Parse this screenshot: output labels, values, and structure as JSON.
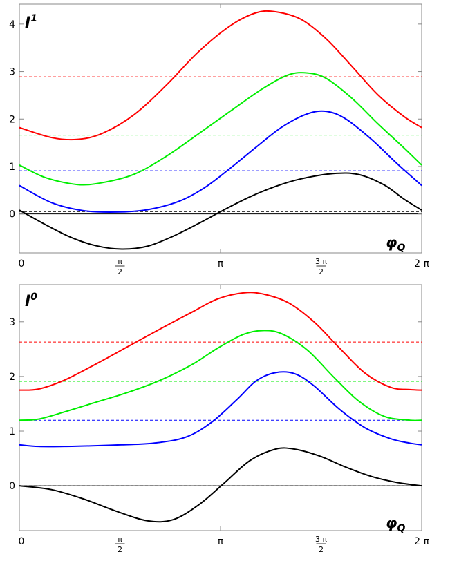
{
  "chart_data": [
    {
      "type": "line",
      "ylabel": "I",
      "ylabel_superscript": "1",
      "xlabel": "φ",
      "xlabel_subscript": "Q",
      "xlim": [
        0,
        6.2832
      ],
      "ylim": [
        -0.82,
        4.42
      ],
      "yticks": [
        "0",
        "1",
        "2",
        "3",
        "4"
      ],
      "ytick_values": [
        0,
        1,
        2,
        3,
        4
      ],
      "xticks": [
        {
          "value": 0,
          "label": "0"
        },
        {
          "value": 1.5708,
          "num": "π",
          "den": "2"
        },
        {
          "value": 3.1416,
          "label": "π"
        },
        {
          "value": 4.7124,
          "num": "3 π",
          "den": "2"
        },
        {
          "value": 6.2832,
          "label": "2 π"
        }
      ],
      "zero_line": true,
      "series": [
        {
          "color": "#ff0000",
          "dashed_level": 2.89,
          "x": [
            0,
            0.5,
            0.9,
            1.3,
            1.8,
            2.3,
            2.8,
            3.3,
            3.7,
            4.0,
            4.4,
            4.8,
            5.2,
            5.6,
            6.0,
            6.2832
          ],
          "y": [
            1.82,
            1.61,
            1.57,
            1.7,
            2.1,
            2.72,
            3.42,
            3.97,
            4.24,
            4.26,
            4.1,
            3.68,
            3.1,
            2.51,
            2.06,
            1.82
          ]
        },
        {
          "color": "#00ee00",
          "dashed_level": 1.66,
          "x": [
            0,
            0.4,
            0.9,
            1.3,
            1.8,
            2.3,
            2.8,
            3.3,
            3.8,
            4.2,
            4.5,
            4.8,
            5.2,
            5.6,
            6.0,
            6.2832
          ],
          "y": [
            1.03,
            0.77,
            0.62,
            0.66,
            0.84,
            1.22,
            1.69,
            2.17,
            2.64,
            2.93,
            2.97,
            2.85,
            2.43,
            1.9,
            1.4,
            1.03
          ]
        },
        {
          "color": "#0000ff",
          "dashed_level": 0.91,
          "x": [
            0,
            0.5,
            1.0,
            1.5,
            2.0,
            2.5,
            2.9,
            3.3,
            3.7,
            4.1,
            4.5,
            4.8,
            5.1,
            5.5,
            5.9,
            6.2832
          ],
          "y": [
            0.6,
            0.24,
            0.07,
            0.04,
            0.09,
            0.27,
            0.56,
            0.97,
            1.41,
            1.83,
            2.11,
            2.16,
            2.0,
            1.57,
            1.06,
            0.6
          ]
        },
        {
          "color": "#000000",
          "dashed_level": 0.05,
          "x": [
            0,
            0.4,
            0.8,
            1.2,
            1.6,
            2.0,
            2.4,
            2.8,
            3.2,
            3.6,
            4.0,
            4.4,
            4.9,
            5.3,
            5.7,
            6.0,
            6.2832
          ],
          "y": [
            0.08,
            -0.22,
            -0.49,
            -0.67,
            -0.74,
            -0.68,
            -0.47,
            -0.2,
            0.09,
            0.36,
            0.58,
            0.74,
            0.85,
            0.83,
            0.61,
            0.32,
            0.08
          ]
        }
      ]
    },
    {
      "type": "line",
      "ylabel": "I",
      "ylabel_superscript": "0",
      "xlabel": "φ",
      "xlabel_subscript": "Q",
      "xlim": [
        0,
        6.2832
      ],
      "ylim": [
        -0.82,
        3.68
      ],
      "yticks": [
        "0",
        "1",
        "2",
        "3"
      ],
      "ytick_values": [
        0,
        1,
        2,
        3
      ],
      "xticks": [
        {
          "value": 0,
          "label": "0"
        },
        {
          "value": 1.5708,
          "num": "π",
          "den": "2"
        },
        {
          "value": 3.1416,
          "label": "π"
        },
        {
          "value": 4.7124,
          "num": "3 π",
          "den": "2"
        },
        {
          "value": 6.2832,
          "label": "2 π"
        }
      ],
      "zero_line": true,
      "series": [
        {
          "color": "#ff0000",
          "dashed_level": 2.63,
          "x": [
            0,
            0.3,
            0.7,
            1.2,
            1.7,
            2.2,
            2.7,
            3.1,
            3.5,
            3.8,
            4.2,
            4.6,
            5.0,
            5.4,
            5.8,
            6.1,
            6.2832
          ],
          "y": [
            1.75,
            1.77,
            1.93,
            2.23,
            2.55,
            2.87,
            3.18,
            3.42,
            3.53,
            3.51,
            3.35,
            3.0,
            2.52,
            2.06,
            1.8,
            1.76,
            1.75
          ]
        },
        {
          "color": "#00ee00",
          "dashed_level": 1.91,
          "x": [
            0,
            0.3,
            0.7,
            1.2,
            1.7,
            2.2,
            2.7,
            3.1,
            3.5,
            3.8,
            4.1,
            4.5,
            4.9,
            5.3,
            5.7,
            6.1,
            6.2832
          ],
          "y": [
            1.2,
            1.22,
            1.35,
            1.53,
            1.71,
            1.93,
            2.22,
            2.52,
            2.77,
            2.84,
            2.78,
            2.48,
            2.0,
            1.55,
            1.27,
            1.2,
            1.2
          ]
        },
        {
          "color": "#0000ff",
          "dashed_level": 1.2,
          "x": [
            0,
            0.3,
            0.7,
            1.1,
            1.6,
            2.1,
            2.6,
            3.0,
            3.4,
            3.7,
            4.0,
            4.3,
            4.6,
            5.0,
            5.4,
            5.8,
            6.1,
            6.2832
          ],
          "y": [
            0.75,
            0.72,
            0.72,
            0.73,
            0.75,
            0.78,
            0.89,
            1.16,
            1.58,
            1.92,
            2.07,
            2.05,
            1.83,
            1.4,
            1.06,
            0.86,
            0.78,
            0.75
          ]
        },
        {
          "color": "#000000",
          "dashed_level": 0.0,
          "x": [
            0,
            0.5,
            1.0,
            1.5,
            2.0,
            2.4,
            2.8,
            3.2,
            3.6,
            4.0,
            4.3,
            4.7,
            5.1,
            5.5,
            5.9,
            6.2832
          ],
          "y": [
            0.0,
            -0.07,
            -0.24,
            -0.46,
            -0.64,
            -0.62,
            -0.35,
            0.05,
            0.46,
            0.67,
            0.67,
            0.54,
            0.34,
            0.17,
            0.06,
            0.0
          ]
        }
      ]
    }
  ]
}
